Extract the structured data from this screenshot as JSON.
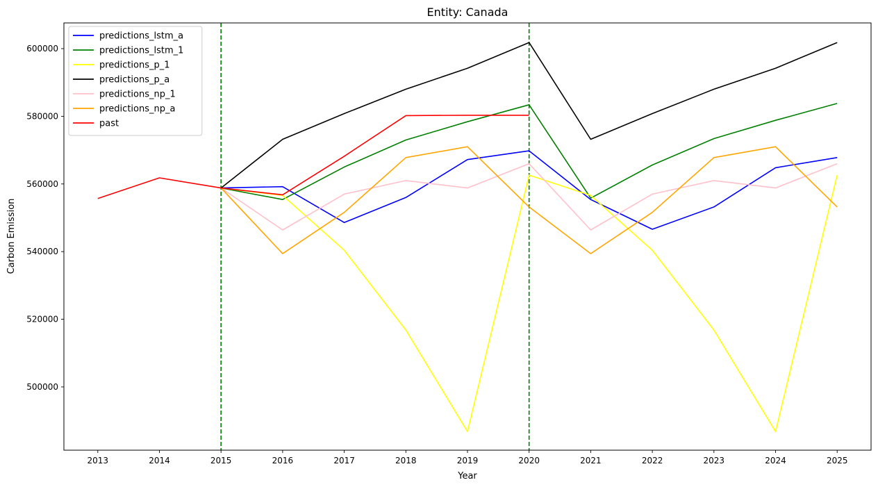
{
  "chart_data": {
    "type": "line",
    "title": "Entity: Canada",
    "xlabel": "Year",
    "ylabel": "Carbon Emission",
    "x": [
      2013,
      2014,
      2015,
      2016,
      2017,
      2018,
      2019,
      2020,
      2021,
      2022,
      2023,
      2024,
      2025
    ],
    "x_ticks": [
      "2013",
      "2014",
      "2015",
      "2016",
      "2017",
      "2018",
      "2019",
      "2020",
      "2021",
      "2022",
      "2023",
      "2024",
      "2025"
    ],
    "y_ticks": [
      500000,
      520000,
      540000,
      560000,
      580000,
      600000
    ],
    "y_tick_labels": [
      "500000",
      "520000",
      "540000",
      "560000",
      "580000",
      "600000"
    ],
    "xlim": [
      2012.45,
      2025.55
    ],
    "ylim": [
      481300,
      607600
    ],
    "grid": false,
    "legend_position": "upper-left",
    "vlines": [
      {
        "x": 2015,
        "color": "#008000",
        "style": "dashed"
      },
      {
        "x": 2020,
        "color": "#008000",
        "style": "dashed"
      }
    ],
    "series": [
      {
        "name": "predictions_lstm_a",
        "color": "#0000ff",
        "x": [
          2015,
          2016,
          2017,
          2018,
          2019,
          2020,
          2021,
          2022,
          2023,
          2024,
          2025
        ],
        "values": [
          558800,
          559200,
          548600,
          556000,
          567200,
          569800,
          555400,
          546600,
          553200,
          564800,
          567800
        ]
      },
      {
        "name": "predictions_lstm_1",
        "color": "#008000",
        "x": [
          2015,
          2016,
          2017,
          2018,
          2019,
          2020,
          2021,
          2022,
          2023,
          2024,
          2025
        ],
        "values": [
          558800,
          555400,
          565000,
          573000,
          578400,
          583400,
          555800,
          565600,
          573400,
          578800,
          583800
        ]
      },
      {
        "name": "predictions_p_1",
        "color": "#ffff00",
        "x": [
          2015,
          2016,
          2017,
          2018,
          2019,
          2020,
          2021,
          2022,
          2023,
          2024,
          2025
        ],
        "values": [
          558800,
          556600,
          540400,
          516800,
          486800,
          562600,
          556600,
          540400,
          516800,
          486800,
          562600
        ]
      },
      {
        "name": "predictions_p_a",
        "color": "#000000",
        "x": [
          2015,
          2016,
          2017,
          2018,
          2019,
          2020,
          2021,
          2022,
          2023,
          2024,
          2025
        ],
        "values": [
          558800,
          573200,
          580800,
          588000,
          594200,
          601800,
          573200,
          580800,
          588000,
          594200,
          601800
        ]
      },
      {
        "name": "predictions_np_1",
        "color": "#ffc0cb",
        "x": [
          2015,
          2016,
          2017,
          2018,
          2019,
          2020,
          2021,
          2022,
          2023,
          2024,
          2025
        ],
        "values": [
          558800,
          546400,
          557000,
          561000,
          558800,
          566000,
          546400,
          557000,
          561000,
          558800,
          566000
        ]
      },
      {
        "name": "predictions_np_a",
        "color": "#ffa500",
        "x": [
          2015,
          2016,
          2017,
          2018,
          2019,
          2020,
          2021,
          2022,
          2023,
          2024,
          2025
        ],
        "values": [
          558800,
          539400,
          551600,
          567800,
          571000,
          553200,
          539400,
          551600,
          567800,
          571000,
          553200
        ]
      },
      {
        "name": "past",
        "color": "#ff0000",
        "x": [
          2013,
          2014,
          2015,
          2016,
          2017,
          2018,
          2019,
          2020
        ],
        "values": [
          555700,
          561800,
          558800,
          556800,
          568200,
          580200,
          580300,
          580300
        ]
      }
    ]
  }
}
